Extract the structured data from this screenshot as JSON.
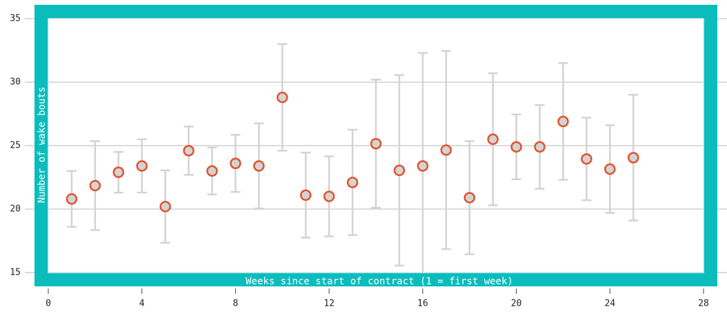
{
  "chart_data": {
    "type": "errorbar-scatter",
    "x_label": "Weeks since start of contract (1 = first week)",
    "y_label": "Number of wake bouts",
    "x": [
      1,
      2,
      3,
      4,
      5,
      6,
      7,
      8,
      9,
      10,
      11,
      12,
      13,
      14,
      15,
      16,
      17,
      18,
      19,
      20,
      21,
      22,
      23,
      24,
      25
    ],
    "values": [
      20.8,
      21.85,
      22.9,
      23.4,
      20.2,
      24.6,
      23.0,
      23.6,
      23.4,
      28.8,
      21.1,
      21.0,
      22.1,
      25.15,
      23.05,
      23.4,
      24.65,
      20.9,
      25.5,
      24.9,
      24.9,
      26.9,
      23.95,
      23.15,
      24.05
    ],
    "errors": [
      2.2,
      3.5,
      1.6,
      2.1,
      2.85,
      1.9,
      1.85,
      2.25,
      3.35,
      4.2,
      3.35,
      3.15,
      4.15,
      5.05,
      7.5,
      8.9,
      7.8,
      4.45,
      5.2,
      2.55,
      3.3,
      4.6,
      3.25,
      3.45,
      4.95
    ],
    "color": "#e0522a",
    "marker_fill": "#d3d3d3",
    "errorbar_color": "#d3d3d3",
    "frame_color": "#0bbcbc",
    "xlim": [
      0,
      28
    ],
    "xticks": [
      0,
      4,
      8,
      12,
      16,
      20,
      24,
      28
    ],
    "ylim": [
      15,
      35
    ],
    "yticks": [
      15,
      20,
      25,
      30,
      35
    ],
    "grid": true
  }
}
